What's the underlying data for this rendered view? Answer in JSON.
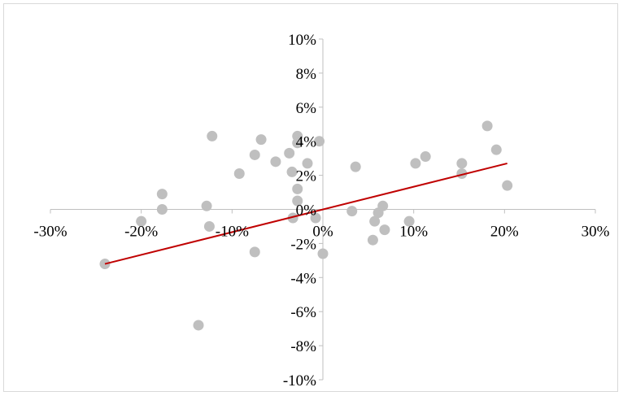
{
  "chart_data": {
    "type": "scatter",
    "title": "",
    "xlabel": "",
    "ylabel": "",
    "xlim": [
      -0.3,
      0.3
    ],
    "ylim": [
      -0.1,
      0.1
    ],
    "x_ticks": [
      -0.3,
      -0.2,
      -0.1,
      0,
      0.1,
      0.2,
      0.3
    ],
    "x_tick_labels": [
      "-30%",
      "-20%",
      "-10%",
      "0%",
      "10%",
      "20%",
      "30%"
    ],
    "y_ticks": [
      0.1,
      0.08,
      0.06,
      0.04,
      0.02,
      0,
      -0.02,
      -0.04,
      -0.06,
      -0.08,
      -0.1
    ],
    "y_tick_labels": [
      "10%",
      "8%",
      "6%",
      "4%",
      "2%",
      "0%",
      "-2%",
      "-4%",
      "-6%",
      "-8%",
      "-10%"
    ],
    "grid": false,
    "legend": "none",
    "marker_color": "#bfbfbf",
    "trendline_color": "#c00000",
    "points": [
      {
        "x": -0.24,
        "y": -0.032
      },
      {
        "x": -0.2,
        "y": -0.007
      },
      {
        "x": -0.177,
        "y": 0.009
      },
      {
        "x": -0.177,
        "y": 0.0
      },
      {
        "x": -0.137,
        "y": -0.068
      },
      {
        "x": -0.128,
        "y": 0.002
      },
      {
        "x": -0.125,
        "y": -0.01
      },
      {
        "x": -0.122,
        "y": 0.043
      },
      {
        "x": -0.092,
        "y": 0.021
      },
      {
        "x": -0.075,
        "y": 0.032
      },
      {
        "x": -0.075,
        "y": -0.025
      },
      {
        "x": -0.068,
        "y": 0.041
      },
      {
        "x": -0.052,
        "y": 0.028
      },
      {
        "x": -0.037,
        "y": 0.033
      },
      {
        "x": -0.034,
        "y": 0.022
      },
      {
        "x": -0.033,
        "y": -0.005
      },
      {
        "x": -0.028,
        "y": 0.043
      },
      {
        "x": -0.028,
        "y": 0.039
      },
      {
        "x": -0.028,
        "y": 0.012
      },
      {
        "x": -0.028,
        "y": 0.005
      },
      {
        "x": -0.017,
        "y": 0.027
      },
      {
        "x": -0.008,
        "y": -0.005
      },
      {
        "x": -0.004,
        "y": 0.04
      },
      {
        "x": 0.0,
        "y": -0.026
      },
      {
        "x": 0.032,
        "y": -0.001
      },
      {
        "x": 0.036,
        "y": 0.025
      },
      {
        "x": 0.055,
        "y": -0.018
      },
      {
        "x": 0.057,
        "y": -0.007
      },
      {
        "x": 0.061,
        "y": -0.002
      },
      {
        "x": 0.066,
        "y": 0.002
      },
      {
        "x": 0.068,
        "y": -0.012
      },
      {
        "x": 0.095,
        "y": -0.007
      },
      {
        "x": 0.102,
        "y": 0.027
      },
      {
        "x": 0.113,
        "y": 0.031
      },
      {
        "x": 0.153,
        "y": 0.027
      },
      {
        "x": 0.153,
        "y": 0.021
      },
      {
        "x": 0.181,
        "y": 0.049
      },
      {
        "x": 0.191,
        "y": 0.035
      },
      {
        "x": 0.203,
        "y": 0.014
      }
    ],
    "trendline": {
      "x": [
        -0.24,
        0.203
      ],
      "y": [
        -0.032,
        0.027
      ]
    }
  }
}
